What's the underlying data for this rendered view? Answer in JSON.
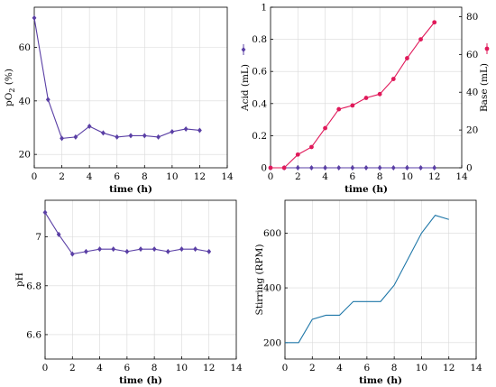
{
  "chart_data": [
    {
      "type": "line",
      "xlabel": "time (h)",
      "ylabel": "pO2 (%)",
      "xlim": [
        0,
        14
      ],
      "ylim": [
        15,
        75
      ],
      "xticks": [
        "0",
        "2",
        "4",
        "6",
        "8",
        "10",
        "12",
        "14"
      ],
      "yticks": [
        "20",
        "40",
        "60"
      ],
      "grid": true,
      "series": [
        {
          "color": "#5a3fa5",
          "marker": "diamond",
          "x": [
            0,
            1,
            2,
            3,
            4,
            5,
            6,
            7,
            8,
            9,
            10,
            11,
            12
          ],
          "y": [
            71,
            40.5,
            26,
            26.5,
            30.5,
            28,
            26.5,
            27,
            27,
            26.5,
            28.5,
            29.5,
            29
          ]
        }
      ]
    },
    {
      "type": "line",
      "xlabel": "time (h)",
      "ylabel": "Acid (mL)",
      "ylabel_right": "Base (mL)",
      "xlim": [
        0,
        14
      ],
      "ylim": [
        0,
        1
      ],
      "ylim_right": [
        0,
        85
      ],
      "xticks": [
        "0",
        "2",
        "4",
        "6",
        "8",
        "10",
        "12",
        "14"
      ],
      "yticks": [
        "0",
        "0.2",
        "0.4",
        "0.6",
        "0.8",
        "1"
      ],
      "yticks_right": [
        "0",
        "20",
        "40",
        "60",
        "80"
      ],
      "grid": true,
      "series": [
        {
          "color": "#5a3fa5",
          "marker": "diamond",
          "axis": "left",
          "x": [
            0,
            1,
            2,
            3,
            4,
            5,
            6,
            7,
            8,
            9,
            10,
            11,
            12
          ],
          "y": [
            0,
            0,
            0,
            0,
            0,
            0,
            0,
            0,
            0,
            0,
            0,
            0,
            0
          ]
        },
        {
          "color": "#e0195a",
          "marker": "circle",
          "axis": "right",
          "x": [
            0,
            1,
            2,
            3,
            4,
            5,
            6,
            7,
            8,
            9,
            10,
            11,
            12
          ],
          "y": [
            0,
            0,
            7,
            11,
            21,
            31,
            33,
            37,
            39,
            47,
            58,
            68,
            77
          ]
        }
      ]
    },
    {
      "type": "line",
      "xlabel": "time (h)",
      "ylabel": "pH",
      "xlim": [
        0,
        14
      ],
      "ylim": [
        6.5,
        7.15
      ],
      "xticks": [
        "0",
        "2",
        "4",
        "6",
        "8",
        "10",
        "12",
        "14"
      ],
      "yticks": [
        "6.6",
        "6.8",
        "7"
      ],
      "grid": true,
      "series": [
        {
          "color": "#5a3fa5",
          "marker": "diamond",
          "x": [
            0,
            1,
            2,
            3,
            4,
            5,
            6,
            7,
            8,
            9,
            10,
            11,
            12
          ],
          "y": [
            7.1,
            7.01,
            6.93,
            6.94,
            6.95,
            6.95,
            6.94,
            6.95,
            6.95,
            6.94,
            6.95,
            6.95,
            6.94
          ]
        }
      ]
    },
    {
      "type": "line",
      "xlabel": "time (h)",
      "ylabel": "Stirring (RPM)",
      "xlim": [
        0,
        14
      ],
      "ylim": [
        140,
        720
      ],
      "xticks": [
        "0",
        "2",
        "4",
        "6",
        "8",
        "10",
        "12",
        "14"
      ],
      "yticks": [
        "200",
        "400",
        "600"
      ],
      "grid": true,
      "series": [
        {
          "color": "#1f77a8",
          "marker": "none",
          "x": [
            0,
            1,
            2,
            3,
            4,
            5,
            6,
            7,
            8,
            9,
            10,
            11,
            12
          ],
          "y": [
            200,
            200,
            285,
            300,
            300,
            350,
            350,
            350,
            410,
            505,
            600,
            665,
            650
          ]
        }
      ]
    }
  ]
}
